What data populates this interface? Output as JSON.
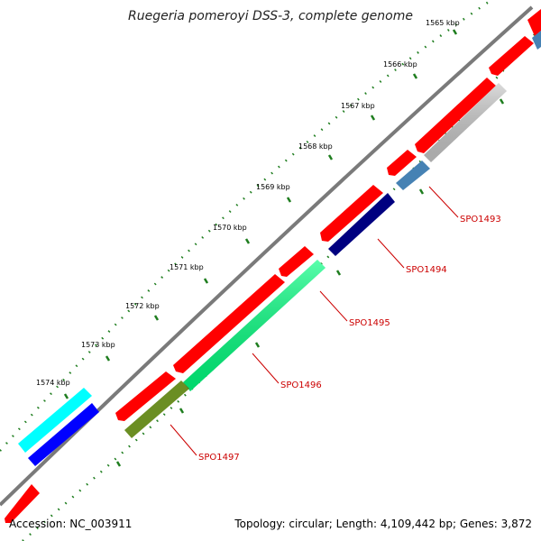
{
  "title": "Ruegeria pomeroyi DSS-3, complete genome",
  "accession": "Accession: NC_003911",
  "summary": "Topology: circular; Length: 4,109,442 bp; Genes: 3,872",
  "ticks": [
    "1565 kbp",
    "1566 kbp",
    "1567 kbp",
    "1568 kbp",
    "1569 kbp",
    "1570 kbp",
    "1571 kbp",
    "1572 kbp",
    "1573 kbp",
    "1574 kbp"
  ],
  "gene_labels": [
    "SPO1493",
    "SPO1494",
    "SPO1495",
    "SPO1496",
    "SPO1497"
  ],
  "colors": {
    "backbone": "#7a7a7a",
    "forward": "#ff0000",
    "tick": "#1e7d1e",
    "label": "#cc0000",
    "light_gray": "#c8c8c8",
    "steel_blue": "#4682b4",
    "navy": "#000080",
    "spring_green": "#00ff7f",
    "olive": "#6b8e23",
    "cyan": "#00ffff",
    "blue": "#0000ff"
  }
}
